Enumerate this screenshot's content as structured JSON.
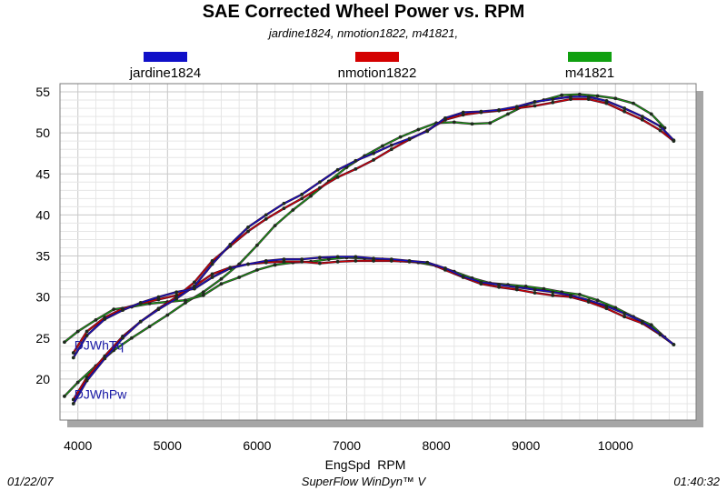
{
  "header": {
    "title": "SAE Corrected Wheel Power vs. RPM",
    "subtitle": "jardine1824, nmotion1822, m41821,"
  },
  "footer": {
    "date": "01/22/07",
    "app": "SuperFlow WinDyn™ V",
    "time": "01:40:32"
  },
  "colors": {
    "jardine1824": "#1010c8",
    "nmotion1822": "#d40000",
    "m41821": "#10a010",
    "line_dark": "#3a1430",
    "marker": "#1e2a1e"
  },
  "chart_data": {
    "type": "line",
    "title": "SAE Corrected Wheel Power vs. RPM",
    "xlabel": "EngSpd  RPM",
    "ylabel": "",
    "xlim": [
      3800,
      10900
    ],
    "ylim": [
      15,
      56
    ],
    "xticks": [
      4000,
      5000,
      6000,
      7000,
      8000,
      9000,
      10000
    ],
    "yticks": [
      20,
      25,
      30,
      35,
      40,
      45,
      50,
      55
    ],
    "grid": true,
    "legend": "top",
    "annotations": [
      {
        "text": "DJWhTq",
        "x": 3960,
        "y": 23.6
      },
      {
        "text": "DJWhPw",
        "x": 3960,
        "y": 17.6
      }
    ],
    "series": [
      {
        "name": "jardine1824",
        "metric": "DJWhPw",
        "x": [
          3950,
          4100,
          4300,
          4500,
          4700,
          4900,
          5100,
          5300,
          5500,
          5700,
          5900,
          6100,
          6300,
          6500,
          6700,
          6900,
          7100,
          7300,
          7500,
          7700,
          7900,
          8100,
          8300,
          8500,
          8700,
          8900,
          9100,
          9300,
          9500,
          9700,
          9900,
          10100,
          10300,
          10500,
          10650
        ],
        "y": [
          17.0,
          19.8,
          22.5,
          25.0,
          27.0,
          28.5,
          29.8,
          31.3,
          34.0,
          36.4,
          38.5,
          40.0,
          41.4,
          42.5,
          44.0,
          45.5,
          46.6,
          47.5,
          48.5,
          49.3,
          50.2,
          51.8,
          52.5,
          52.6,
          52.8,
          53.2,
          53.8,
          54.1,
          54.4,
          54.4,
          53.9,
          53.0,
          52.0,
          50.8,
          49.1
        ]
      },
      {
        "name": "jardine1824",
        "metric": "DJWhTq",
        "x": [
          3950,
          4100,
          4300,
          4500,
          4700,
          4900,
          5100,
          5300,
          5500,
          5700,
          5900,
          6100,
          6300,
          6500,
          6700,
          6900,
          7100,
          7300,
          7500,
          7700,
          7900,
          8100,
          8300,
          8500,
          8700,
          8900,
          9100,
          9300,
          9500,
          9700,
          9900,
          10100,
          10300,
          10500,
          10650
        ],
        "y": [
          22.6,
          25.3,
          27.3,
          28.4,
          29.3,
          30.0,
          30.6,
          31.0,
          32.4,
          33.5,
          34.0,
          34.4,
          34.6,
          34.6,
          34.8,
          34.9,
          34.9,
          34.7,
          34.6,
          34.4,
          34.2,
          33.5,
          32.5,
          31.8,
          31.5,
          31.2,
          30.9,
          30.6,
          30.2,
          29.6,
          28.9,
          28.0,
          27.0,
          25.5,
          24.2
        ]
      },
      {
        "name": "nmotion1822",
        "metric": "DJWhPw",
        "x": [
          3950,
          4100,
          4300,
          4500,
          4700,
          4900,
          5100,
          5300,
          5500,
          5700,
          5900,
          6100,
          6300,
          6500,
          6700,
          6900,
          7100,
          7300,
          7500,
          7700,
          7900,
          8100,
          8300,
          8500,
          8700,
          8900,
          9100,
          9300,
          9500,
          9700,
          9900,
          10100,
          10300,
          10500,
          10650
        ],
        "y": [
          17.5,
          20.2,
          22.8,
          25.2,
          27.0,
          28.6,
          30.0,
          31.8,
          34.4,
          36.2,
          38.0,
          39.5,
          40.8,
          42.0,
          43.3,
          44.6,
          45.6,
          46.7,
          48.0,
          49.2,
          50.3,
          51.6,
          52.2,
          52.5,
          52.7,
          53.0,
          53.3,
          53.7,
          54.1,
          54.1,
          53.6,
          52.6,
          51.6,
          50.3,
          49.0
        ]
      },
      {
        "name": "nmotion1822",
        "metric": "DJWhTq",
        "x": [
          3950,
          4100,
          4300,
          4500,
          4700,
          4900,
          5100,
          5300,
          5500,
          5700,
          5900,
          6100,
          6300,
          6500,
          6700,
          6900,
          7100,
          7300,
          7500,
          7700,
          7900,
          8100,
          8300,
          8500,
          8700,
          8900,
          9100,
          9300,
          9500,
          9700,
          9900,
          10100,
          10300,
          10500,
          10650
        ],
        "y": [
          23.2,
          25.8,
          27.5,
          28.6,
          29.2,
          29.7,
          30.2,
          31.3,
          32.8,
          33.6,
          34.0,
          34.2,
          34.3,
          34.3,
          34.1,
          34.3,
          34.4,
          34.4,
          34.4,
          34.3,
          34.2,
          33.3,
          32.4,
          31.6,
          31.2,
          30.9,
          30.5,
          30.2,
          30.0,
          29.4,
          28.6,
          27.6,
          26.8,
          25.4,
          24.2
        ]
      },
      {
        "name": "m41821",
        "metric": "DJWhPw",
        "x": [
          3850,
          4000,
          4200,
          4400,
          4600,
          4800,
          5000,
          5200,
          5400,
          5600,
          5800,
          6000,
          6200,
          6400,
          6600,
          6800,
          7000,
          7200,
          7400,
          7600,
          7800,
          8000,
          8200,
          8400,
          8600,
          8800,
          9000,
          9200,
          9400,
          9600,
          9800,
          10000,
          10200,
          10400,
          10550
        ],
        "y": [
          17.9,
          19.6,
          21.6,
          23.5,
          25.0,
          26.4,
          27.8,
          29.3,
          30.6,
          32.2,
          34.0,
          36.3,
          38.7,
          40.6,
          42.3,
          44.1,
          45.8,
          47.2,
          48.4,
          49.5,
          50.4,
          51.2,
          51.3,
          51.1,
          51.2,
          52.3,
          53.4,
          54.0,
          54.6,
          54.7,
          54.5,
          54.2,
          53.6,
          52.3,
          50.6
        ]
      },
      {
        "name": "m41821",
        "metric": "DJWhTq",
        "x": [
          3850,
          4000,
          4200,
          4400,
          4600,
          4800,
          5000,
          5200,
          5400,
          5600,
          5800,
          6000,
          6200,
          6400,
          6600,
          6800,
          7000,
          7200,
          7400,
          7600,
          7800,
          8000,
          8200,
          8400,
          8600,
          8800,
          9000,
          9200,
          9400,
          9600,
          9800,
          10000,
          10200,
          10400,
          10550
        ],
        "y": [
          24.5,
          25.8,
          27.2,
          28.5,
          28.8,
          29.2,
          29.4,
          29.6,
          30.2,
          31.6,
          32.4,
          33.3,
          33.9,
          34.2,
          34.3,
          34.6,
          34.8,
          34.7,
          34.6,
          34.4,
          34.2,
          33.8,
          33.1,
          32.3,
          31.7,
          31.5,
          31.3,
          31.0,
          30.6,
          30.3,
          29.6,
          28.7,
          27.6,
          26.6,
          25.1
        ]
      }
    ]
  }
}
